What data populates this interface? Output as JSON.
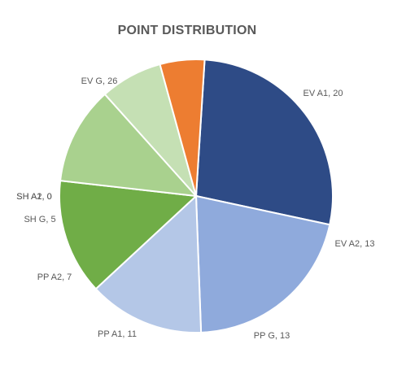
{
  "chart_data": {
    "type": "pie",
    "title": "POINT DISTRIBUTION",
    "slices": [
      {
        "label": "EV G",
        "value": 26,
        "text": "EV G, 26",
        "color": "#2E4B86"
      },
      {
        "label": "EV A1",
        "value": 20,
        "text": "EV A1, 20",
        "color": "#8FAADC"
      },
      {
        "label": "EV A2",
        "value": 13,
        "text": "EV A2, 13",
        "color": "#B4C7E7"
      },
      {
        "label": "PP G",
        "value": 13,
        "text": "PP G, 13",
        "color": "#70AD47"
      },
      {
        "label": "PP A1",
        "value": 11,
        "text": "PP A1,  11",
        "color": "#A9D18E"
      },
      {
        "label": "PP A2",
        "value": 7,
        "text": "PP A2,  7",
        "color": "#C5E0B4"
      },
      {
        "label": "SH G",
        "value": 5,
        "text": "SH G, 5",
        "color": "#ED7D31"
      },
      {
        "label": "SH A2",
        "value": 0,
        "text": "SH A2, 0",
        "color": "#F4B183"
      },
      {
        "label": "SH A1",
        "value": 0,
        "text": "SH A1, 0",
        "color": "#F8CBAD"
      }
    ]
  }
}
